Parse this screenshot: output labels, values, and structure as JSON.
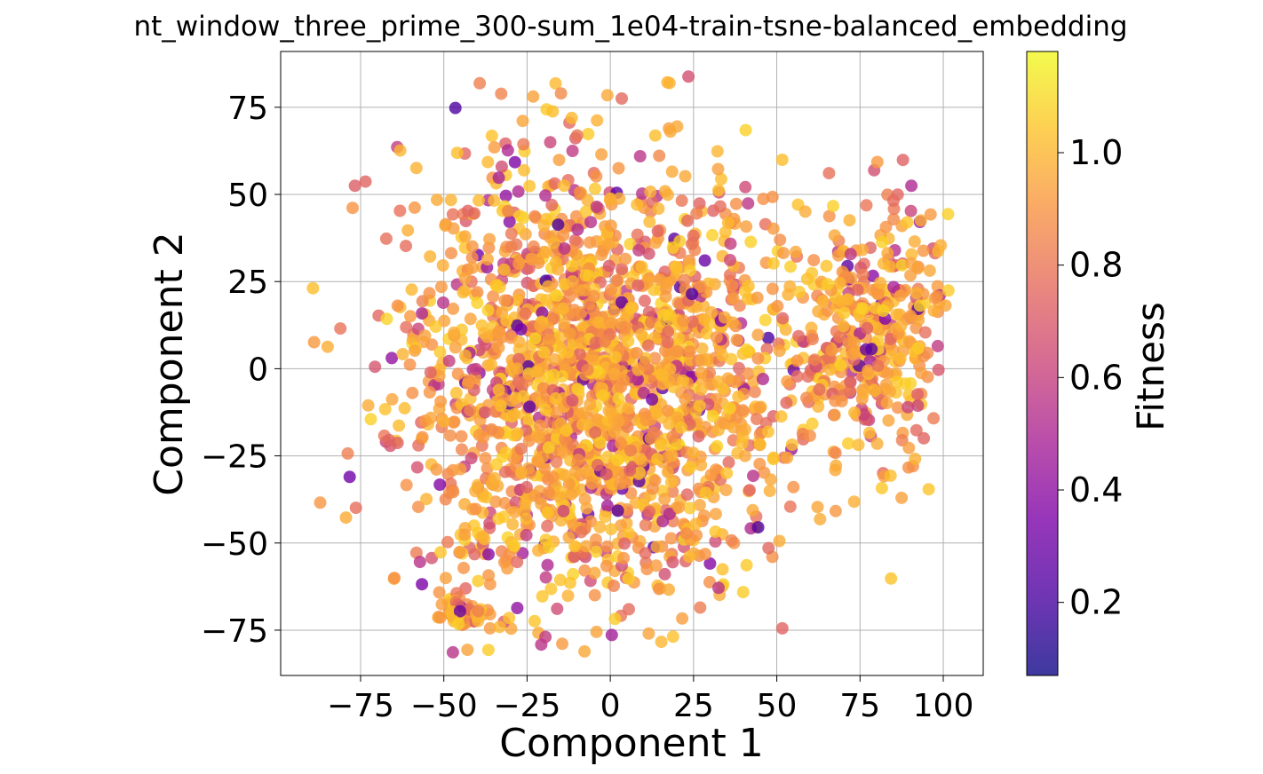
{
  "chart_data": {
    "type": "scatter",
    "title": "nt_window_three_prime_300-sum_1e04-train-tsne-balanced_embedding",
    "xlabel": "Component 1",
    "ylabel": "Component 2",
    "xlim": [
      -99,
      112
    ],
    "ylim": [
      -88,
      91
    ],
    "xticks": [
      -75,
      -50,
      -25,
      0,
      25,
      50,
      75,
      100
    ],
    "yticks": [
      -75,
      -50,
      -25,
      0,
      25,
      50,
      75
    ],
    "xtick_labels": [
      "−75",
      "−50",
      "−25",
      "0",
      "25",
      "50",
      "75",
      "100"
    ],
    "ytick_labels": [
      "−75",
      "−50",
      "−25",
      "0",
      "25",
      "50",
      "75"
    ],
    "grid": true,
    "colormap": "plasma",
    "colorbar": {
      "label": "Fitness",
      "range": [
        0.07,
        1.18
      ],
      "ticks": [
        0.2,
        0.4,
        0.6,
        0.8,
        1.0
      ],
      "tick_labels": [
        "0.2",
        "0.4",
        "0.6",
        "0.8",
        "1.0"
      ]
    },
    "point_count": "approx. 2500",
    "clusters": [
      {
        "name": "main",
        "center": [
          -5,
          -5
        ],
        "spread": [
          28,
          32
        ],
        "fraction": 0.82
      },
      {
        "name": "right",
        "center": [
          78,
          10
        ],
        "spread": [
          12,
          18
        ],
        "fraction": 0.16
      },
      {
        "name": "bottom-left",
        "center": [
          -44,
          -70
        ],
        "spread": [
          3,
          2
        ],
        "fraction": 0.02
      }
    ]
  }
}
